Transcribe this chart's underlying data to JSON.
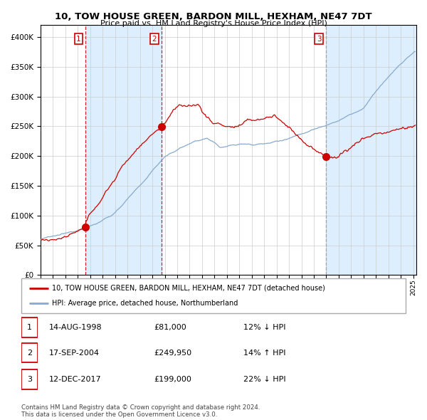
{
  "title": "10, TOW HOUSE GREEN, BARDON MILL, HEXHAM, NE47 7DT",
  "subtitle": "Price paid vs. HM Land Registry's House Price Index (HPI)",
  "sale_dates_str": [
    "1998-08-14",
    "2004-09-17",
    "2017-12-12"
  ],
  "sale_prices": [
    81000,
    249950,
    199000
  ],
  "sale_labels": [
    "1",
    "2",
    "3"
  ],
  "legend_property": "10, TOW HOUSE GREEN, BARDON MILL, HEXHAM, NE47 7DT (detached house)",
  "legend_hpi": "HPI: Average price, detached house, Northumberland",
  "table_rows": [
    [
      "1",
      "14-AUG-1998",
      "£81,000",
      "12% ↓ HPI"
    ],
    [
      "2",
      "17-SEP-2004",
      "£249,950",
      "14% ↑ HPI"
    ],
    [
      "3",
      "12-DEC-2017",
      "£199,000",
      "22% ↓ HPI"
    ]
  ],
  "footer": "Contains HM Land Registry data © Crown copyright and database right 2024.\nThis data is licensed under the Open Government Licence v3.0.",
  "property_line_color": "#cc0000",
  "hpi_line_color": "#88aacc",
  "shade_color": "#ddeeff",
  "vline_red_color": "#cc0000",
  "vline_gray_color": "#999999",
  "ylim": [
    0,
    420000
  ],
  "yticks": [
    0,
    50000,
    100000,
    150000,
    200000,
    250000,
    300000,
    350000,
    400000
  ],
  "start_year": 1995,
  "end_year": 2025
}
